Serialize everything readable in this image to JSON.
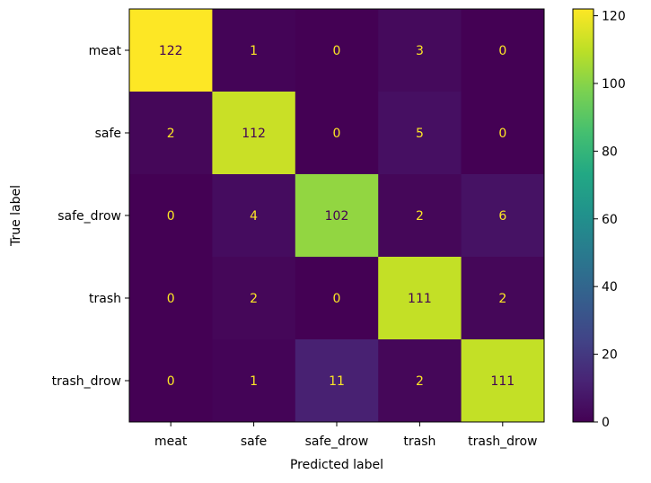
{
  "chart_data": {
    "type": "heatmap",
    "title": "",
    "xlabel": "Predicted label",
    "ylabel": "True label",
    "x_categories": [
      "meat",
      "safe",
      "safe_drow",
      "trash",
      "trash_drow"
    ],
    "y_categories": [
      "meat",
      "safe",
      "safe_drow",
      "trash",
      "trash_drow"
    ],
    "values": [
      [
        122,
        1,
        0,
        3,
        0
      ],
      [
        2,
        112,
        0,
        5,
        0
      ],
      [
        0,
        4,
        102,
        2,
        6
      ],
      [
        0,
        2,
        0,
        111,
        2
      ],
      [
        0,
        1,
        11,
        2,
        111
      ]
    ],
    "colormap": "viridis",
    "vmin": 0,
    "vmax": 122,
    "colorbar": {
      "ticks": [
        0,
        20,
        40,
        60,
        80,
        100,
        120
      ],
      "tick_labels": [
        "0",
        "20",
        "40",
        "60",
        "80",
        "100",
        "120"
      ]
    },
    "text_color_dark_cells": "#fde725",
    "text_color_light_cells": "#440154",
    "grid": false
  }
}
